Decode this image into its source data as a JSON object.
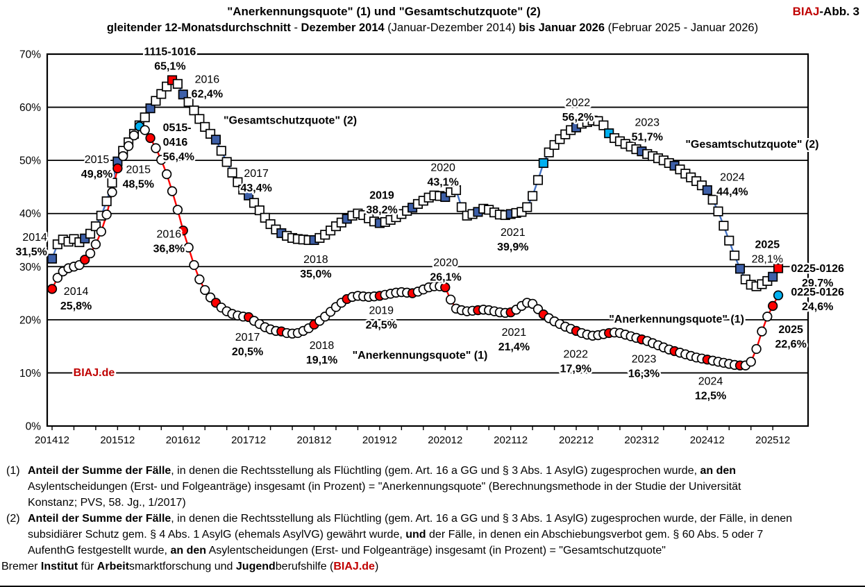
{
  "header": {
    "title": "\"Anerkennungsquote\" (1) und \"Gesamtschutzquote\" (2)",
    "corner_segments": [
      {
        "text": "BIAJ",
        "bold": true,
        "color": "#C00000"
      },
      {
        "text": "-Abb. 3",
        "bold": true,
        "color": "#000000"
      }
    ],
    "subtitle_segments": [
      {
        "text": "gleitender 12-Monatsdurchschnitt",
        "bold": true
      },
      {
        "text": " - ",
        "bold": false
      },
      {
        "text": "Dezember 2014 ",
        "bold": true
      },
      {
        "text": "(Januar-Dezember 2014) ",
        "bold": false
      },
      {
        "text": "bis Januar 2026 ",
        "bold": true
      },
      {
        "text": "(Februar 2025 - Januar 2026)",
        "bold": false
      }
    ]
  },
  "chart_data": {
    "type": "line",
    "title": "\"Anerkennungsquote\" (1) und \"Gesamtschutzquote\" (2), gleitender 12-Monatsdurchschnitt",
    "x_start_month": "2014-12",
    "x_end_month": "2026-01",
    "months_total": 134,
    "x_labels": [
      "201412",
      "201512",
      "201612",
      "201712",
      "201812",
      "201912",
      "202012",
      "202112",
      "202212",
      "202312",
      "202412",
      "202512"
    ],
    "y_ticks": [
      "0%",
      "10%",
      "20%",
      "30%",
      "40%",
      "50%",
      "60%",
      "70%"
    ],
    "ylim": [
      0,
      70
    ],
    "grid": true,
    "series": [
      {
        "key": "gesamtschutzquote",
        "name": "\"Gesamtschutzquote\" (2)",
        "marker": "square",
        "line_color": "#4472C4",
        "marker_fill_default": "#FFFFFF",
        "periodic_marker_color": "#3D5FA8",
        "periodic_marker_note": "every June and December filled dark blue",
        "special_markers": {
          "22": "#FF0000",
          "90": "#00B0F0",
          "102": "#00B0F0",
          "133": "#FF0000"
        },
        "values": [
          31.5,
          34.2,
          35.1,
          34.7,
          35.2,
          34.6,
          35.3,
          36.2,
          37.6,
          39.6,
          42.3,
          45.8,
          49.8,
          51.8,
          53.4,
          55.0,
          56.6,
          58.1,
          59.8,
          61.2,
          62.5,
          63.9,
          65.1,
          64.4,
          62.4,
          61.0,
          59.4,
          57.8,
          56.3,
          55.0,
          53.9,
          51.8,
          49.7,
          47.7,
          45.9,
          44.5,
          43.4,
          42.0,
          40.6,
          39.2,
          38.0,
          37.0,
          36.3,
          35.8,
          35.4,
          35.2,
          35.1,
          35.0,
          35.0,
          35.4,
          36.0,
          36.8,
          37.6,
          38.3,
          39.0,
          39.6,
          40.0,
          39.7,
          39.1,
          38.5,
          38.2,
          38.4,
          38.8,
          39.3,
          39.9,
          40.5,
          41.1,
          41.8,
          42.4,
          43.0,
          43.4,
          43.3,
          43.1,
          44.0,
          44.4,
          41.2,
          39.6,
          39.9,
          40.3,
          40.9,
          40.7,
          40.2,
          39.8,
          39.7,
          39.9,
          40.1,
          40.3,
          41.2,
          43.3,
          46.3,
          49.5,
          51.5,
          52.9,
          54.0,
          54.9,
          55.7,
          56.2,
          56.9,
          57.2,
          57.5,
          57.4,
          56.6,
          55.1,
          54.2,
          53.6,
          53.1,
          52.6,
          52.1,
          51.7,
          51.2,
          50.8,
          50.4,
          50.0,
          49.5,
          49.0,
          48.3,
          47.5,
          46.8,
          46.1,
          45.3,
          44.4,
          42.6,
          40.4,
          37.7,
          34.9,
          32.1,
          29.6,
          27.6,
          26.6,
          26.3,
          26.7,
          27.3,
          28.1,
          29.7
        ]
      },
      {
        "key": "anerkennungsquote",
        "name": "\"Anerkennungsquote\" (1)",
        "marker": "circle",
        "line_color": "#FF0000",
        "marker_fill_default": "#FFFFFF",
        "periodic_marker_color": "#FF0000",
        "periodic_marker_note": "every June and December filled red",
        "special_markers": {
          "16": "#00B0F0",
          "133": "#00B0F0"
        },
        "values": [
          25.8,
          27.9,
          29.1,
          29.7,
          30.0,
          30.3,
          31.3,
          32.5,
          34.2,
          36.6,
          39.8,
          44.0,
          48.5,
          50.8,
          52.7,
          54.7,
          56.4,
          55.7,
          54.2,
          52.3,
          50.1,
          47.4,
          44.2,
          40.7,
          36.8,
          33.6,
          30.3,
          27.6,
          25.6,
          24.2,
          23.2,
          22.3,
          21.6,
          21.1,
          20.8,
          20.6,
          20.5,
          19.8,
          19.2,
          18.6,
          18.2,
          17.9,
          17.8,
          17.5,
          17.4,
          17.5,
          17.9,
          18.4,
          19.1,
          19.8,
          20.6,
          21.5,
          22.4,
          23.2,
          23.9,
          24.3,
          24.5,
          24.4,
          24.3,
          24.4,
          24.5,
          24.7,
          24.9,
          25.1,
          25.2,
          25.1,
          25.0,
          25.3,
          25.7,
          26.1,
          26.3,
          26.3,
          26.1,
          23.8,
          22.1,
          21.8,
          21.6,
          21.7,
          21.8,
          21.9,
          21.8,
          21.6,
          21.4,
          21.3,
          21.4,
          21.9,
          22.6,
          23.2,
          23.0,
          22.0,
          21.0,
          20.3,
          19.7,
          19.2,
          18.7,
          18.3,
          17.9,
          17.5,
          17.2,
          17.0,
          17.1,
          17.3,
          17.5,
          17.6,
          17.5,
          17.2,
          16.9,
          16.6,
          16.3,
          16.0,
          15.6,
          15.2,
          14.8,
          14.4,
          14.1,
          13.8,
          13.5,
          13.2,
          12.9,
          12.7,
          12.5,
          12.3,
          12.1,
          11.9,
          11.7,
          11.5,
          11.4,
          11.4,
          12.1,
          14.5,
          17.8,
          20.6,
          22.6,
          24.6
        ]
      }
    ],
    "annotations": [
      {
        "x": 21.6,
        "anchor": "middle",
        "y": 70.5,
        "lines": [
          {
            "t": "1115-1016",
            "b": true
          },
          {
            "t": "65,1%",
            "b": true
          }
        ]
      },
      {
        "x": 28.4,
        "anchor": "middle",
        "y": 65.3,
        "lines": [
          {
            "t": "2016",
            "b": false
          },
          {
            "t": "62,4%",
            "b": true
          }
        ]
      },
      {
        "x": 31.4,
        "anchor": "start",
        "y": 57.6,
        "lines": [
          {
            "t": "\"Gesamtschutzquote\" (2)",
            "b": true
          }
        ]
      },
      {
        "x": 8.2,
        "anchor": "middle",
        "y": 50.2,
        "lines": [
          {
            "t": "2015",
            "b": false
          },
          {
            "t": "49,8%",
            "b": true
          }
        ]
      },
      {
        "x": 15.8,
        "anchor": "middle",
        "y": 48.3,
        "lines": [
          {
            "t": "2015",
            "b": false
          },
          {
            "t": "48,5%",
            "b": true
          }
        ]
      },
      {
        "x": 20.3,
        "anchor": "start",
        "y": 56.2,
        "lines": [
          {
            "t": "0515-",
            "b": true
          },
          {
            "t": "0416",
            "b": true
          },
          {
            "t": "56,4%",
            "b": true
          }
        ]
      },
      {
        "x": -0.9,
        "anchor": "end",
        "y": 35.6,
        "lines": [
          {
            "t": "2014",
            "b": false
          },
          {
            "t": "31,5%",
            "b": true
          }
        ]
      },
      {
        "x": 4.4,
        "anchor": "middle",
        "y": 25.4,
        "lines": [
          {
            "t": "2014",
            "b": false
          },
          {
            "t": "25,8%",
            "b": true
          }
        ]
      },
      {
        "x": 21.4,
        "anchor": "middle",
        "y": 36.2,
        "lines": [
          {
            "t": "2016",
            "b": false
          },
          {
            "t": "36,8%",
            "b": true
          }
        ]
      },
      {
        "x": 37.4,
        "anchor": "middle",
        "y": 47.6,
        "lines": [
          {
            "t": "2017",
            "b": false
          },
          {
            "t": "43,4%",
            "b": true
          }
        ]
      },
      {
        "x": 35.8,
        "anchor": "middle",
        "y": 16.8,
        "lines": [
          {
            "t": "2017",
            "b": false
          },
          {
            "t": "20,5%",
            "b": true
          }
        ]
      },
      {
        "x": 48.3,
        "anchor": "middle",
        "y": 31.4,
        "lines": [
          {
            "t": "2018",
            "b": false
          },
          {
            "t": "35,0%",
            "b": true
          }
        ]
      },
      {
        "x": 49.4,
        "anchor": "middle",
        "y": 15.2,
        "lines": [
          {
            "t": "2018",
            "b": false
          },
          {
            "t": "19,1%",
            "b": true
          }
        ]
      },
      {
        "x": 60.4,
        "anchor": "middle",
        "y": 43.5,
        "lines": [
          {
            "t": "2019",
            "b": true
          },
          {
            "t": "38,2%",
            "b": true
          }
        ]
      },
      {
        "x": 60.3,
        "anchor": "middle",
        "y": 21.8,
        "lines": [
          {
            "t": "2019",
            "b": false
          },
          {
            "t": "24,5%",
            "b": true
          }
        ]
      },
      {
        "x": 55.0,
        "anchor": "start",
        "y": 13.4,
        "lines": [
          {
            "t": "\"Anerkennungsquote\" (1)",
            "b": true
          }
        ]
      },
      {
        "x": 71.6,
        "anchor": "middle",
        "y": 48.7,
        "lines": [
          {
            "t": "2020",
            "b": false
          },
          {
            "t": "43,1%",
            "b": true
          }
        ]
      },
      {
        "x": 72.1,
        "anchor": "middle",
        "y": 30.8,
        "lines": [
          {
            "t": "2020",
            "b": false
          },
          {
            "t": "26,1%",
            "b": true
          }
        ]
      },
      {
        "x": 84.4,
        "anchor": "middle",
        "y": 36.5,
        "lines": [
          {
            "t": "2021",
            "b": false
          },
          {
            "t": "39,9%",
            "b": true
          }
        ]
      },
      {
        "x": 84.6,
        "anchor": "middle",
        "y": 17.7,
        "lines": [
          {
            "t": "2021",
            "b": false
          },
          {
            "t": "21,4%",
            "b": true
          }
        ]
      },
      {
        "x": 96.3,
        "anchor": "middle",
        "y": 60.9,
        "lines": [
          {
            "t": "2022",
            "b": false
          },
          {
            "t": "56,2%",
            "b": true
          }
        ]
      },
      {
        "x": 95.9,
        "anchor": "middle",
        "y": 13.6,
        "lines": [
          {
            "t": "2022",
            "b": false
          },
          {
            "t": "17,9%",
            "b": true
          }
        ]
      },
      {
        "x": 109.0,
        "anchor": "middle",
        "y": 57.2,
        "lines": [
          {
            "t": "2023",
            "b": false
          },
          {
            "t": "51,7%",
            "b": true
          }
        ]
      },
      {
        "x": 108.4,
        "anchor": "middle",
        "y": 12.7,
        "lines": [
          {
            "t": "2023",
            "b": false
          },
          {
            "t": "16,3%",
            "b": true
          }
        ]
      },
      {
        "x": 116.0,
        "anchor": "start",
        "y": 53.1,
        "lines": [
          {
            "t": "\"Gesamtschutzquote\" (2)",
            "b": true
          }
        ]
      },
      {
        "x": 124.6,
        "anchor": "middle",
        "y": 46.9,
        "lines": [
          {
            "t": "2024",
            "b": false
          },
          {
            "t": "44,4%",
            "b": true
          }
        ]
      },
      {
        "x": 120.6,
        "anchor": "middle",
        "y": 8.5,
        "lines": [
          {
            "t": "2024",
            "b": false
          },
          {
            "t": "12,5%",
            "b": true
          }
        ]
      },
      {
        "x": 102.0,
        "anchor": "start",
        "y": 20.2,
        "lines": [
          {
            "t": "\"Anerkennungsquote\" (1)",
            "b": true
          }
        ]
      },
      {
        "x": 131.0,
        "anchor": "middle",
        "y": 34.2,
        "lines": [
          {
            "t": "2025",
            "b": true
          },
          {
            "t": "28,1%",
            "b": false
          }
        ]
      },
      {
        "x": 140.2,
        "anchor": "middle",
        "y": 29.7,
        "lines": [
          {
            "t": "0225-0126",
            "b": true
          },
          {
            "t": "29,7%",
            "b": true
          }
        ]
      },
      {
        "x": 140.2,
        "anchor": "middle",
        "y": 25.3,
        "lines": [
          {
            "t": "0225-0126",
            "b": true
          },
          {
            "t": "24,6%",
            "b": true
          }
        ]
      },
      {
        "x": 135.3,
        "anchor": "middle",
        "y": 18.2,
        "lines": [
          {
            "t": "2025",
            "b": true
          },
          {
            "t": "22,6%",
            "b": true
          }
        ]
      },
      {
        "x": 3.9,
        "anchor": "start",
        "y": 10.1,
        "color": "#C00000",
        "lines": [
          {
            "t": "BIAJ.de",
            "b": true
          }
        ]
      }
    ]
  },
  "footnotes": [
    {
      "lines": [
        [
          {
            "t": "Anteil der Summe der Fälle",
            "b": true
          },
          {
            "t": ", in denen die Rechtsstellung als Flüchtling (gem. Art. 16 a GG und § 3 Abs. 1 AsylG) zugesprochen wurde, ",
            "b": false
          },
          {
            "t": "an den",
            "b": true
          }
        ],
        [
          {
            "t": "Asylentscheidungen (Erst- und Folgeanträge) insgesamt (in Prozent) = \"Anerkennungsquote\" (Berechnungsmethode in der Studie der Universität",
            "b": false
          }
        ],
        [
          {
            "t": "Konstanz; PVS, 58. Jg., 1/2017)",
            "b": false
          }
        ]
      ],
      "marker": "(1)"
    },
    {
      "lines": [
        [
          {
            "t": "Anteil der Summe der Fälle",
            "b": true
          },
          {
            "t": ", in denen die Rechtsstellung als Flüchtling (gem. Art. 16 a GG und § 3 Abs. 1 AsylG) zugesprochen wurde, der Fälle, in denen",
            "b": false
          }
        ],
        [
          {
            "t": "subsidiärer Schutz gem. § 4 Abs. 1 AsylG (ehemals AsylVG) gewährt wurde, ",
            "b": false
          },
          {
            "t": "und",
            "b": true
          },
          {
            "t": " der Fälle, in denen ein Abschiebungsverbot gem. § 60 Abs. 5 oder 7",
            "b": false
          }
        ],
        [
          {
            "t": "AufenthG festgestellt wurde, ",
            "b": false
          },
          {
            "t": "an den",
            "b": true
          },
          {
            "t": " Asylentscheidungen (Erst- und Folgeanträge) insgesamt (in Prozent) = \"Gesamtschutzquote\"",
            "b": false
          }
        ]
      ],
      "marker": "(2)"
    }
  ],
  "credit_segments": [
    {
      "t": "Bremer ",
      "b": false
    },
    {
      "t": "Institut",
      "b": true
    },
    {
      "t": " für ",
      "b": false
    },
    {
      "t": "Arbeit",
      "b": true
    },
    {
      "t": "smarktforschung und ",
      "b": false
    },
    {
      "t": "Jugend",
      "b": true
    },
    {
      "t": "berufshilfe (",
      "b": false
    },
    {
      "t": "BIAJ.de",
      "b": true,
      "c": "#C00000"
    },
    {
      "t": ")",
      "b": false
    }
  ]
}
